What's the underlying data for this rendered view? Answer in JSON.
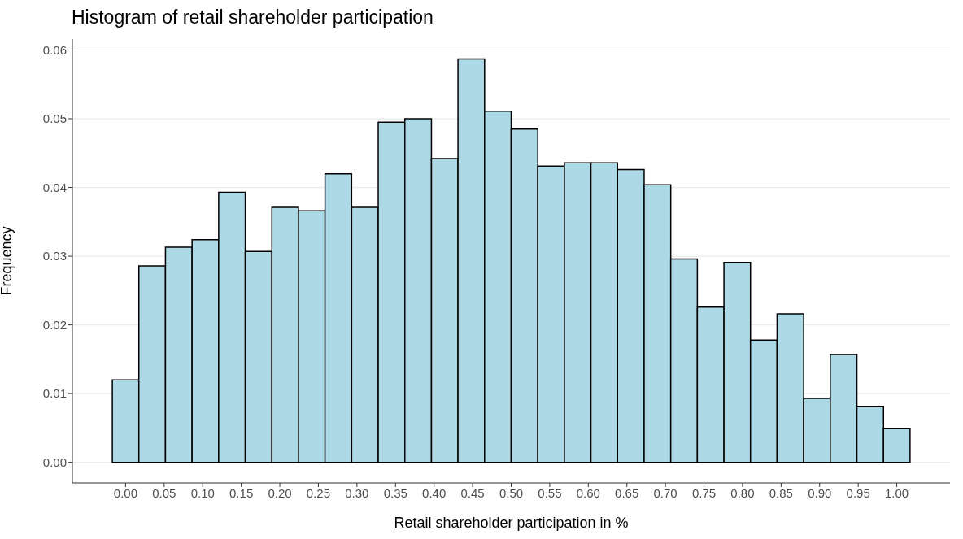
{
  "chart_data": {
    "type": "histogram",
    "title": "Histogram of retail shareholder participation",
    "xlabel": "Retail shareholder participation in %",
    "ylabel": "Frequency",
    "bins": [
      -0.0172,
      0.0172,
      0.0517,
      0.0862,
      0.1207,
      0.1552,
      0.1897,
      0.2241,
      0.2586,
      0.2931,
      0.3276,
      0.3621,
      0.3966,
      0.431,
      0.4655,
      0.5,
      0.5345,
      0.569,
      0.6034,
      0.6379,
      0.6724,
      0.7069,
      0.7414,
      0.7759,
      0.8103,
      0.8448,
      0.8793,
      0.9138,
      0.9483,
      0.9828,
      1.0172
    ],
    "values": [
      0.012,
      0.0286,
      0.0313,
      0.0324,
      0.0393,
      0.0307,
      0.0371,
      0.0366,
      0.042,
      0.0371,
      0.0495,
      0.05,
      0.0442,
      0.0587,
      0.0511,
      0.0485,
      0.0431,
      0.0436,
      0.0436,
      0.0426,
      0.0404,
      0.0296,
      0.0226,
      0.0291,
      0.0178,
      0.0216,
      0.0093,
      0.0157,
      0.0081,
      0.0049
    ],
    "color": "#add8e6",
    "xlim": [
      -0.069,
      1.069
    ],
    "xticks": [
      {
        "value": 0,
        "label": "0.00"
      },
      {
        "value": 0.05,
        "label": "0.05"
      },
      {
        "value": 0.1,
        "label": "0.10"
      },
      {
        "value": 0.15,
        "label": "0.15"
      },
      {
        "value": 0.2,
        "label": "0.20"
      },
      {
        "value": 0.25,
        "label": "0.25"
      },
      {
        "value": 0.3,
        "label": "0.30"
      },
      {
        "value": 0.35,
        "label": "0.35"
      },
      {
        "value": 0.4,
        "label": "0.40"
      },
      {
        "value": 0.45,
        "label": "0.45"
      },
      {
        "value": 0.5,
        "label": "0.50"
      },
      {
        "value": 0.55,
        "label": "0.55"
      },
      {
        "value": 0.6,
        "label": "0.60"
      },
      {
        "value": 0.65,
        "label": "0.65"
      },
      {
        "value": 0.7,
        "label": "0.70"
      },
      {
        "value": 0.75,
        "label": "0.75"
      },
      {
        "value": 0.8,
        "label": "0.80"
      },
      {
        "value": 0.85,
        "label": "0.85"
      },
      {
        "value": 0.9,
        "label": "0.90"
      },
      {
        "value": 0.95,
        "label": "0.95"
      },
      {
        "value": 1,
        "label": "1.00"
      }
    ],
    "ylim": [
      -0.003,
      0.0616
    ],
    "yticks": [
      {
        "value": 0,
        "label": "0.00"
      },
      {
        "value": 0.01,
        "label": "0.01"
      },
      {
        "value": 0.02,
        "label": "0.02"
      },
      {
        "value": 0.03,
        "label": "0.03"
      },
      {
        "value": 0.04,
        "label": "0.04"
      },
      {
        "value": 0.05,
        "label": "0.05"
      },
      {
        "value": 0.06,
        "label": "0.06"
      }
    ],
    "grid": "y"
  }
}
